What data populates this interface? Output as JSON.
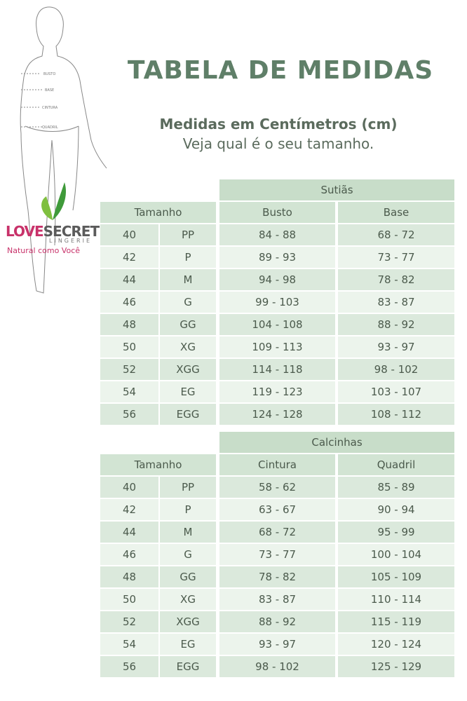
{
  "header": {
    "title": "TABELA DE MEDIDAS",
    "subtitle": "Medidas em Centímetros (cm)",
    "tagline": "Veja qual é o seu tamanho."
  },
  "figure": {
    "labels": [
      "BUSTO",
      "BASE",
      "CINTURA",
      "QUADRIL"
    ]
  },
  "logo": {
    "brand_love": "LOVE",
    "brand_secret": "SECRET",
    "sub": "LINGERIE",
    "slogan": "Natural como Você"
  },
  "table_sutias": {
    "group": "Sutiãs",
    "headers": [
      "Tamanho",
      "Busto",
      "Base"
    ],
    "rows": [
      [
        "40",
        "PP",
        "84 - 88",
        "68 - 72"
      ],
      [
        "42",
        "P",
        "89 - 93",
        "73 - 77"
      ],
      [
        "44",
        "M",
        "94 - 98",
        "78 - 82"
      ],
      [
        "46",
        "G",
        "99 - 103",
        "83 - 87"
      ],
      [
        "48",
        "GG",
        "104 - 108",
        "88 - 92"
      ],
      [
        "50",
        "XG",
        "109 - 113",
        "93 - 97"
      ],
      [
        "52",
        "XGG",
        "114 - 118",
        "98 - 102"
      ],
      [
        "54",
        "EG",
        "119 - 123",
        "103 - 107"
      ],
      [
        "56",
        "EGG",
        "124 - 128",
        "108 - 112"
      ]
    ]
  },
  "table_calcinhas": {
    "group": "Calcinhas",
    "headers": [
      "Tamanho",
      "Cintura",
      "Quadril"
    ],
    "rows": [
      [
        "40",
        "PP",
        "58 - 62",
        "85 - 89"
      ],
      [
        "42",
        "P",
        "63 - 67",
        "90 - 94"
      ],
      [
        "44",
        "M",
        "68 - 72",
        "95 - 99"
      ],
      [
        "46",
        "G",
        "73 - 77",
        "100 - 104"
      ],
      [
        "48",
        "GG",
        "78 - 82",
        "105 - 109"
      ],
      [
        "50",
        "XG",
        "83 - 87",
        "110 - 114"
      ],
      [
        "52",
        "XGG",
        "88 - 92",
        "115 - 119"
      ],
      [
        "54",
        "EG",
        "93 - 97",
        "120 - 124"
      ],
      [
        "56",
        "EGG",
        "98 - 102",
        "125 - 129"
      ]
    ]
  }
}
